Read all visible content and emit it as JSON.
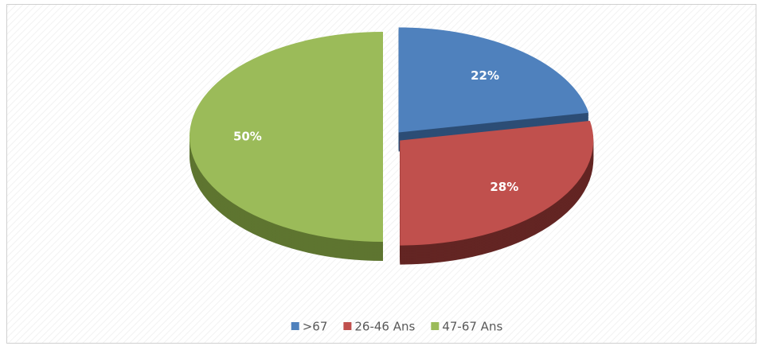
{
  "chart_data": {
    "type": "pie",
    "categories": [
      ">67",
      "26-46 Ans",
      "47-67 Ans"
    ],
    "values": [
      22,
      28,
      50
    ],
    "value_labels": [
      "22%",
      "28%",
      "50%"
    ],
    "colors": [
      "#4f81bd",
      "#c0504d",
      "#9bbb59"
    ],
    "side_colors": [
      "#2c4d75",
      "#632523",
      "#5e7530"
    ],
    "legend": "bottom"
  }
}
